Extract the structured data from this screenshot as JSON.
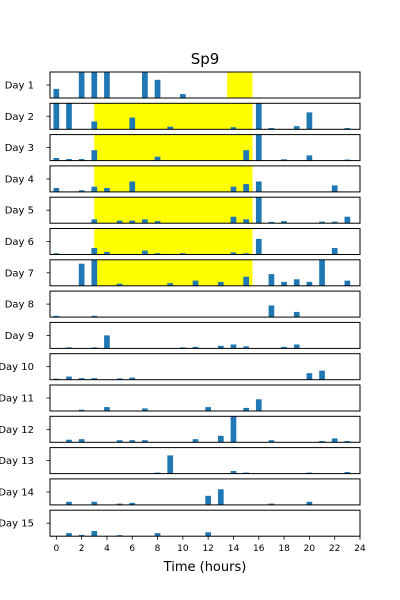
{
  "chart_data": {
    "type": "bar",
    "title": "Sp9",
    "xlabel": "Time (hours)",
    "ylabel": "",
    "xlim": [
      -0.5,
      24
    ],
    "xticks": [
      0,
      2,
      4,
      6,
      8,
      10,
      12,
      14,
      16,
      18,
      20,
      22,
      24
    ],
    "bar_width_hours": 0.45,
    "highlight_color": "#ffff00",
    "bar_color": "#1f77b4",
    "grid": false,
    "legend": "none",
    "rows": [
      {
        "label": "Day 1",
        "highlight": [
          13.5,
          15.5
        ],
        "bars": [
          [
            0,
            0.35
          ],
          [
            2,
            1.0
          ],
          [
            3,
            1.0
          ],
          [
            4,
            1.0
          ],
          [
            7,
            1.0
          ],
          [
            8,
            0.7
          ],
          [
            10,
            0.15
          ]
        ]
      },
      {
        "label": "Day 2",
        "highlight": [
          3.0,
          15.5
        ],
        "bars": [
          [
            0,
            1.0
          ],
          [
            1,
            1.0
          ],
          [
            3,
            0.3
          ],
          [
            6,
            0.45
          ],
          [
            9,
            0.1
          ],
          [
            14,
            0.08
          ],
          [
            16,
            1.0
          ],
          [
            17,
            0.05
          ],
          [
            19,
            0.12
          ],
          [
            20,
            0.65
          ],
          [
            23,
            0.05
          ]
        ]
      },
      {
        "label": "Day 3",
        "highlight": [
          3.0,
          15.5
        ],
        "bars": [
          [
            0,
            0.1
          ],
          [
            1,
            0.06
          ],
          [
            2,
            0.06
          ],
          [
            3,
            0.4
          ],
          [
            8,
            0.15
          ],
          [
            15,
            0.4
          ],
          [
            16,
            1.0
          ],
          [
            18,
            0.05
          ],
          [
            20,
            0.2
          ],
          [
            23,
            0.04
          ]
        ]
      },
      {
        "label": "Day 4",
        "highlight": [
          3.0,
          15.5
        ],
        "bars": [
          [
            0,
            0.15
          ],
          [
            2,
            0.06
          ],
          [
            3,
            0.2
          ],
          [
            4,
            0.15
          ],
          [
            6,
            0.4
          ],
          [
            14,
            0.2
          ],
          [
            15,
            0.3
          ],
          [
            16,
            0.4
          ],
          [
            22,
            0.25
          ]
        ]
      },
      {
        "label": "Day 5",
        "highlight": [
          3.0,
          15.5
        ],
        "bars": [
          [
            3,
            0.15
          ],
          [
            5,
            0.1
          ],
          [
            6,
            0.1
          ],
          [
            7,
            0.15
          ],
          [
            8,
            0.08
          ],
          [
            14,
            0.25
          ],
          [
            15,
            0.15
          ],
          [
            16,
            1.0
          ],
          [
            17,
            0.05
          ],
          [
            18,
            0.08
          ],
          [
            21,
            0.06
          ],
          [
            22,
            0.06
          ],
          [
            23,
            0.25
          ]
        ]
      },
      {
        "label": "Day 6",
        "highlight": [
          3.0,
          15.5
        ],
        "bars": [
          [
            0,
            0.05
          ],
          [
            3,
            0.25
          ],
          [
            4,
            0.1
          ],
          [
            7,
            0.15
          ],
          [
            8,
            0.05
          ],
          [
            10,
            0.05
          ],
          [
            14,
            0.08
          ],
          [
            15,
            0.05
          ],
          [
            16,
            0.6
          ],
          [
            22,
            0.25
          ]
        ]
      },
      {
        "label": "Day 7",
        "highlight": [
          3.0,
          15.5
        ],
        "bars": [
          [
            2,
            0.85
          ],
          [
            3,
            1.0
          ],
          [
            5,
            0.08
          ],
          [
            9,
            0.1
          ],
          [
            11,
            0.2
          ],
          [
            13,
            0.15
          ],
          [
            15,
            0.35
          ],
          [
            17,
            0.45
          ],
          [
            18,
            0.15
          ],
          [
            19,
            0.25
          ],
          [
            20,
            0.15
          ],
          [
            21,
            1.0
          ],
          [
            23,
            0.2
          ]
        ]
      },
      {
        "label": "Day 8",
        "highlight": null,
        "bars": [
          [
            0,
            0.05
          ],
          [
            3,
            0.05
          ],
          [
            17,
            0.45
          ],
          [
            19,
            0.2
          ]
        ]
      },
      {
        "label": "Day 9",
        "highlight": null,
        "bars": [
          [
            1,
            0.04
          ],
          [
            3,
            0.04
          ],
          [
            4,
            0.5
          ],
          [
            10,
            0.04
          ],
          [
            11,
            0.06
          ],
          [
            13,
            0.1
          ],
          [
            14,
            0.15
          ],
          [
            15,
            0.08
          ],
          [
            18,
            0.06
          ],
          [
            19,
            0.15
          ]
        ]
      },
      {
        "label": "Day 10",
        "highlight": null,
        "bars": [
          [
            0,
            0.04
          ],
          [
            1,
            0.12
          ],
          [
            2,
            0.06
          ],
          [
            3,
            0.06
          ],
          [
            5,
            0.05
          ],
          [
            6,
            0.08
          ],
          [
            20,
            0.25
          ],
          [
            21,
            0.35
          ]
        ]
      },
      {
        "label": "Day 11",
        "highlight": null,
        "bars": [
          [
            2,
            0.05
          ],
          [
            4,
            0.15
          ],
          [
            7,
            0.1
          ],
          [
            12,
            0.15
          ],
          [
            15,
            0.12
          ],
          [
            16,
            0.45
          ]
        ]
      },
      {
        "label": "Day 12",
        "highlight": null,
        "bars": [
          [
            1,
            0.1
          ],
          [
            2,
            0.12
          ],
          [
            5,
            0.08
          ],
          [
            6,
            0.08
          ],
          [
            7,
            0.08
          ],
          [
            11,
            0.12
          ],
          [
            13,
            0.25
          ],
          [
            14,
            1.0
          ],
          [
            17,
            0.08
          ],
          [
            21,
            0.05
          ],
          [
            22,
            0.15
          ],
          [
            23,
            0.05
          ]
        ]
      },
      {
        "label": "Day 13",
        "highlight": null,
        "bars": [
          [
            8,
            0.04
          ],
          [
            9,
            0.7
          ],
          [
            14,
            0.1
          ],
          [
            15,
            0.04
          ],
          [
            20,
            0.04
          ],
          [
            23,
            0.06
          ]
        ]
      },
      {
        "label": "Day 14",
        "highlight": null,
        "bars": [
          [
            1,
            0.12
          ],
          [
            3,
            0.12
          ],
          [
            5,
            0.05
          ],
          [
            6,
            0.08
          ],
          [
            12,
            0.35
          ],
          [
            13,
            0.6
          ],
          [
            17,
            0.05
          ],
          [
            20,
            0.12
          ]
        ]
      },
      {
        "label": "Day 15",
        "highlight": null,
        "bars": [
          [
            1,
            0.12
          ],
          [
            2,
            0.05
          ],
          [
            3,
            0.2
          ],
          [
            5,
            0.04
          ],
          [
            8,
            0.12
          ],
          [
            12,
            0.15
          ]
        ]
      }
    ]
  }
}
